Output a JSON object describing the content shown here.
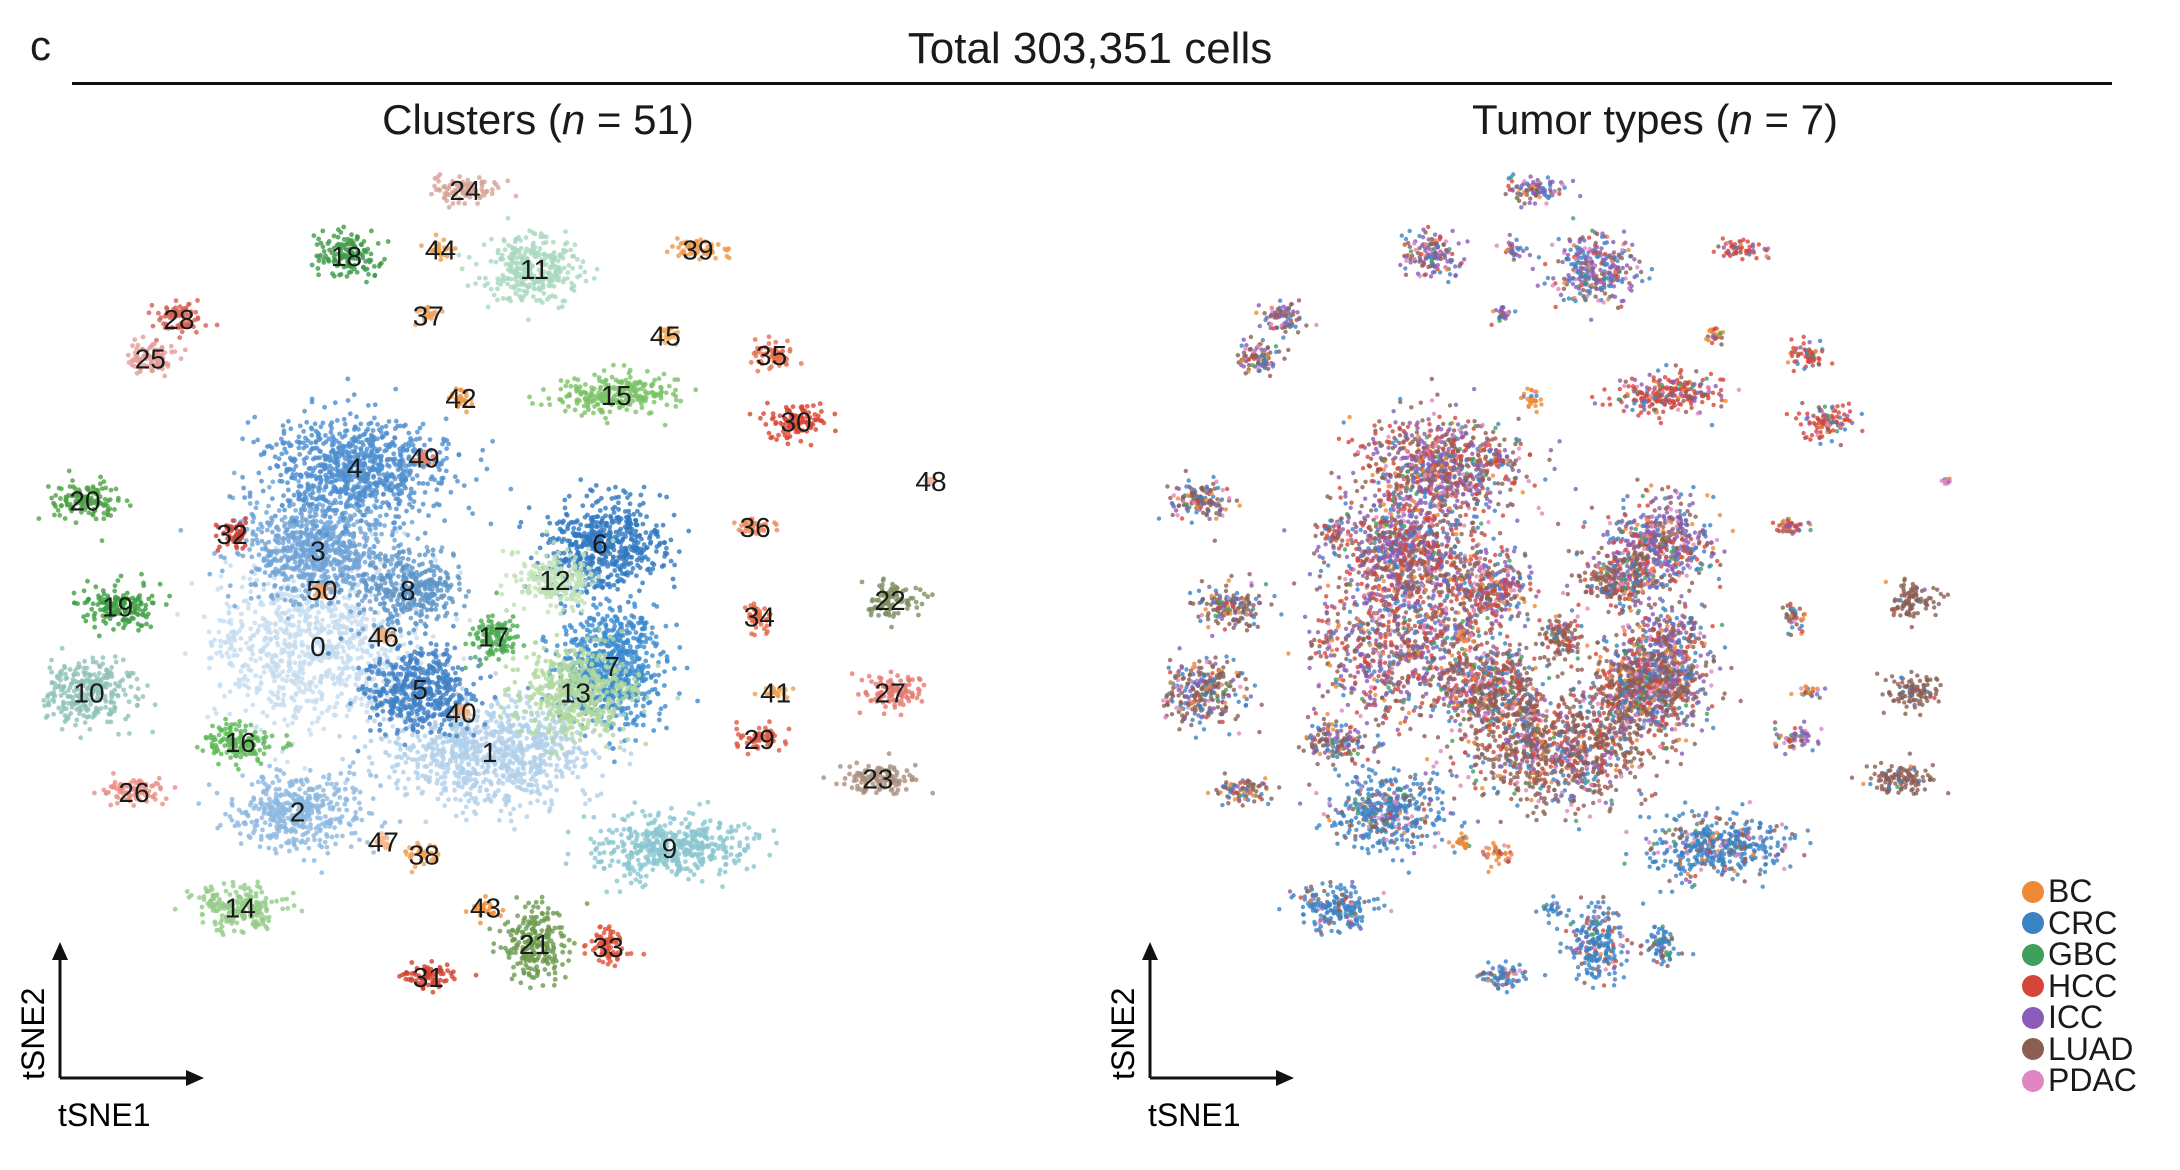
{
  "figure": {
    "panel_letter": "c",
    "super_title": "Total 303,351 cells"
  },
  "colors": {
    "BC": "#ee8a36",
    "CRC": "#3b82c4",
    "GBC": "#3fa05c",
    "HCC": "#d6453a",
    "ICC": "#8a5bb8",
    "LUAD": "#8b5e52",
    "PDAC": "#de87c2"
  },
  "chart_data": [
    {
      "type": "scatter",
      "subtype": "tSNE",
      "title": {
        "prefix": "Clusters (",
        "n": "n",
        "suffix": " = 51)"
      },
      "xlabel": "tSNE1",
      "ylabel": "tSNE2",
      "total_clusters": 51,
      "clusters": [
        {
          "id": "0",
          "x": -3.2,
          "y": -0.2,
          "spread": [
            2.6,
            2.4
          ],
          "color": "#c6dcef"
        },
        {
          "id": "1",
          "x": 1.0,
          "y": -3.4,
          "spread": [
            2.4,
            1.6
          ],
          "color": "#b0cfea"
        },
        {
          "id": "2",
          "x": -3.7,
          "y": -5.2,
          "spread": [
            1.5,
            1.1
          ],
          "color": "#8cb8e0"
        },
        {
          "id": "3",
          "x": -3.2,
          "y": 2.7,
          "spread": [
            1.8,
            1.6
          ],
          "color": "#6fa3d6"
        },
        {
          "id": "4",
          "x": -2.3,
          "y": 5.2,
          "spread": [
            2.1,
            1.5
          ],
          "color": "#4d8fcf"
        },
        {
          "id": "5",
          "x": -0.7,
          "y": -1.5,
          "spread": [
            1.4,
            1.3
          ],
          "color": "#3e80c6"
        },
        {
          "id": "6",
          "x": 3.7,
          "y": 2.9,
          "spread": [
            1.5,
            1.4
          ],
          "color": "#2f78c0"
        },
        {
          "id": "7",
          "x": 4.0,
          "y": -0.8,
          "spread": [
            1.3,
            1.9
          ],
          "color": "#3a8bd0"
        },
        {
          "id": "8",
          "x": -1.0,
          "y": 1.5,
          "spread": [
            1.2,
            1.1
          ],
          "color": "#5c95c7"
        },
        {
          "id": "9",
          "x": 5.4,
          "y": -6.3,
          "spread": [
            1.9,
            0.9
          ],
          "color": "#8ac6cf"
        },
        {
          "id": "10",
          "x": -8.8,
          "y": -1.6,
          "spread": [
            1.1,
            1.0
          ],
          "color": "#8fc2b8"
        },
        {
          "id": "11",
          "x": 2.1,
          "y": 11.2,
          "spread": [
            1.2,
            1.0
          ],
          "color": "#a8d8be"
        },
        {
          "id": "12",
          "x": 2.6,
          "y": 1.8,
          "spread": [
            1.0,
            0.9
          ],
          "color": "#c1e2b6"
        },
        {
          "id": "13",
          "x": 3.1,
          "y": -1.6,
          "spread": [
            1.4,
            1.4
          ],
          "color": "#b0d89e"
        },
        {
          "id": "14",
          "x": -5.1,
          "y": -8.1,
          "spread": [
            1.1,
            0.7
          ],
          "color": "#93cb87"
        },
        {
          "id": "15",
          "x": 4.1,
          "y": 7.4,
          "spread": [
            1.6,
            0.6
          ],
          "color": "#7bc267"
        },
        {
          "id": "16",
          "x": -5.1,
          "y": -3.1,
          "spread": [
            0.9,
            0.6
          ],
          "color": "#5cb857"
        },
        {
          "id": "17",
          "x": 1.1,
          "y": 0.1,
          "spread": [
            0.6,
            0.7
          ],
          "color": "#4bab50"
        },
        {
          "id": "18",
          "x": -2.5,
          "y": 11.6,
          "spread": [
            0.9,
            0.6
          ],
          "color": "#3f9a4a"
        },
        {
          "id": "19",
          "x": -8.1,
          "y": 1.0,
          "spread": [
            0.9,
            0.7
          ],
          "color": "#3d9d42"
        },
        {
          "id": "20",
          "x": -8.9,
          "y": 4.2,
          "spread": [
            0.9,
            0.6
          ],
          "color": "#4fa245"
        },
        {
          "id": "21",
          "x": 2.1,
          "y": -9.2,
          "spread": [
            0.8,
            1.1
          ],
          "color": "#6b9a4d"
        },
        {
          "id": "22",
          "x": 10.8,
          "y": 1.2,
          "spread": [
            0.6,
            0.6
          ],
          "color": "#7e8f62"
        },
        {
          "id": "23",
          "x": 10.5,
          "y": -4.2,
          "spread": [
            0.9,
            0.5
          ],
          "color": "#a98f7e"
        },
        {
          "id": "24",
          "x": 0.4,
          "y": 13.6,
          "spread": [
            0.9,
            0.4
          ],
          "color": "#d6a496"
        },
        {
          "id": "25",
          "x": -7.3,
          "y": 8.5,
          "spread": [
            0.7,
            0.5
          ],
          "color": "#e59c9a"
        },
        {
          "id": "26",
          "x": -7.7,
          "y": -4.6,
          "spread": [
            0.8,
            0.4
          ],
          "color": "#ea8e85"
        },
        {
          "id": "27",
          "x": 10.8,
          "y": -1.6,
          "spread": [
            0.8,
            0.5
          ],
          "color": "#e47a70"
        },
        {
          "id": "28",
          "x": -6.6,
          "y": 9.7,
          "spread": [
            0.6,
            0.5
          ],
          "color": "#d56054"
        },
        {
          "id": "29",
          "x": 7.6,
          "y": -3.0,
          "spread": [
            0.6,
            0.4
          ],
          "color": "#df5b45"
        },
        {
          "id": "30",
          "x": 8.5,
          "y": 6.6,
          "spread": [
            0.8,
            0.5
          ],
          "color": "#d9452f"
        },
        {
          "id": "31",
          "x": -0.5,
          "y": -10.2,
          "spread": [
            0.7,
            0.4
          ],
          "color": "#d2412e"
        },
        {
          "id": "32",
          "x": -5.3,
          "y": 3.2,
          "spread": [
            0.4,
            0.5
          ],
          "color": "#cf3f33"
        },
        {
          "id": "33",
          "x": 3.9,
          "y": -9.3,
          "spread": [
            0.5,
            0.6
          ],
          "color": "#e0543a"
        },
        {
          "id": "34",
          "x": 7.6,
          "y": 0.7,
          "spread": [
            0.4,
            0.4
          ],
          "color": "#e26a44"
        },
        {
          "id": "35",
          "x": 7.9,
          "y": 8.6,
          "spread": [
            0.6,
            0.4
          ],
          "color": "#e8714e"
        },
        {
          "id": "36",
          "x": 7.5,
          "y": 3.4,
          "spread": [
            0.5,
            0.3
          ],
          "color": "#ee8a5a"
        },
        {
          "id": "37",
          "x": -0.5,
          "y": 9.8,
          "spread": [
            0.3,
            0.3
          ],
          "color": "#f2a25e"
        },
        {
          "id": "38",
          "x": -0.6,
          "y": -6.5,
          "spread": [
            0.5,
            0.3
          ],
          "color": "#f1a15a"
        },
        {
          "id": "39",
          "x": 6.1,
          "y": 11.8,
          "spread": [
            0.7,
            0.3
          ],
          "color": "#ef9a48"
        },
        {
          "id": "40",
          "x": 0.3,
          "y": -2.2,
          "spread": [
            0.2,
            0.2
          ],
          "color": "#f3b07a"
        },
        {
          "id": "41",
          "x": 8.0,
          "y": -1.6,
          "spread": [
            0.4,
            0.2
          ],
          "color": "#f0a050"
        },
        {
          "id": "42",
          "x": 0.3,
          "y": 7.3,
          "spread": [
            0.3,
            0.3
          ],
          "color": "#ef9640"
        },
        {
          "id": "43",
          "x": 0.9,
          "y": -8.1,
          "spread": [
            0.3,
            0.3
          ],
          "color": "#f08f3a"
        },
        {
          "id": "44",
          "x": -0.2,
          "y": 11.8,
          "spread": [
            0.3,
            0.3
          ],
          "color": "#ed9c45"
        },
        {
          "id": "45",
          "x": 5.3,
          "y": 9.2,
          "spread": [
            0.3,
            0.3
          ],
          "color": "#f3ac5c"
        },
        {
          "id": "46",
          "x": -1.6,
          "y": 0.1,
          "spread": [
            0.2,
            0.2
          ],
          "color": "#f2b380"
        },
        {
          "id": "47",
          "x": -1.6,
          "y": -6.1,
          "spread": [
            0.2,
            0.2
          ],
          "color": "#f4b88c"
        },
        {
          "id": "48",
          "x": 11.8,
          "y": 4.8,
          "spread": [
            0.1,
            0.1
          ],
          "color": "#e9b9a4"
        },
        {
          "id": "49",
          "x": -0.6,
          "y": 5.5,
          "spread": [
            0.2,
            0.2
          ],
          "color": "#e4836a"
        },
        {
          "id": "50",
          "x": -3.1,
          "y": 1.5,
          "spread": [
            0.2,
            0.2
          ],
          "color": "#f0a36a"
        }
      ]
    },
    {
      "type": "scatter",
      "subtype": "tSNE",
      "title": {
        "prefix": "Tumor types (",
        "n": "n",
        "suffix": " = 7)"
      },
      "xlabel": "tSNE1",
      "ylabel": "tSNE2",
      "legend": [
        "BC",
        "CRC",
        "GBC",
        "HCC",
        "ICC",
        "LUAD",
        "PDAC"
      ],
      "legend_position": "bottom-right"
    }
  ]
}
